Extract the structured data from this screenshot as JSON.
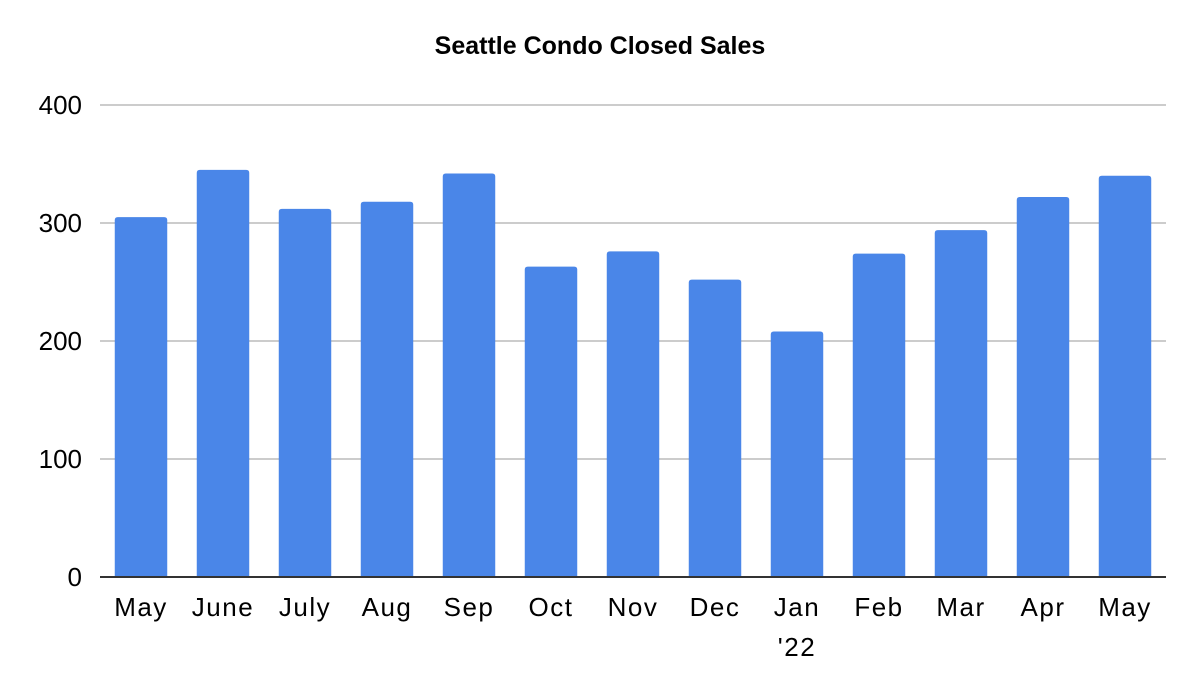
{
  "chart_data": {
    "type": "bar",
    "title": "Seattle Condo Closed Sales",
    "xlabel": "",
    "ylabel": "",
    "categories": [
      "May",
      "June",
      "July",
      "Aug",
      "Sep",
      "Oct",
      "Nov",
      "Dec",
      "Jan",
      "Feb",
      "Mar",
      "Apr",
      "May"
    ],
    "category_sublabels": [
      "",
      "",
      "",
      "",
      "",
      "",
      "",
      "",
      "'22",
      "",
      "",
      "",
      ""
    ],
    "values": [
      305,
      345,
      312,
      318,
      342,
      263,
      276,
      252,
      208,
      274,
      294,
      322,
      340
    ],
    "ylim": [
      0,
      400
    ],
    "yticks": [
      0,
      100,
      200,
      300,
      400
    ],
    "grid": true,
    "legend": "none",
    "colors": {
      "bar": "#4a86e8",
      "grid": "#cccccc",
      "axis": "#333333"
    }
  }
}
